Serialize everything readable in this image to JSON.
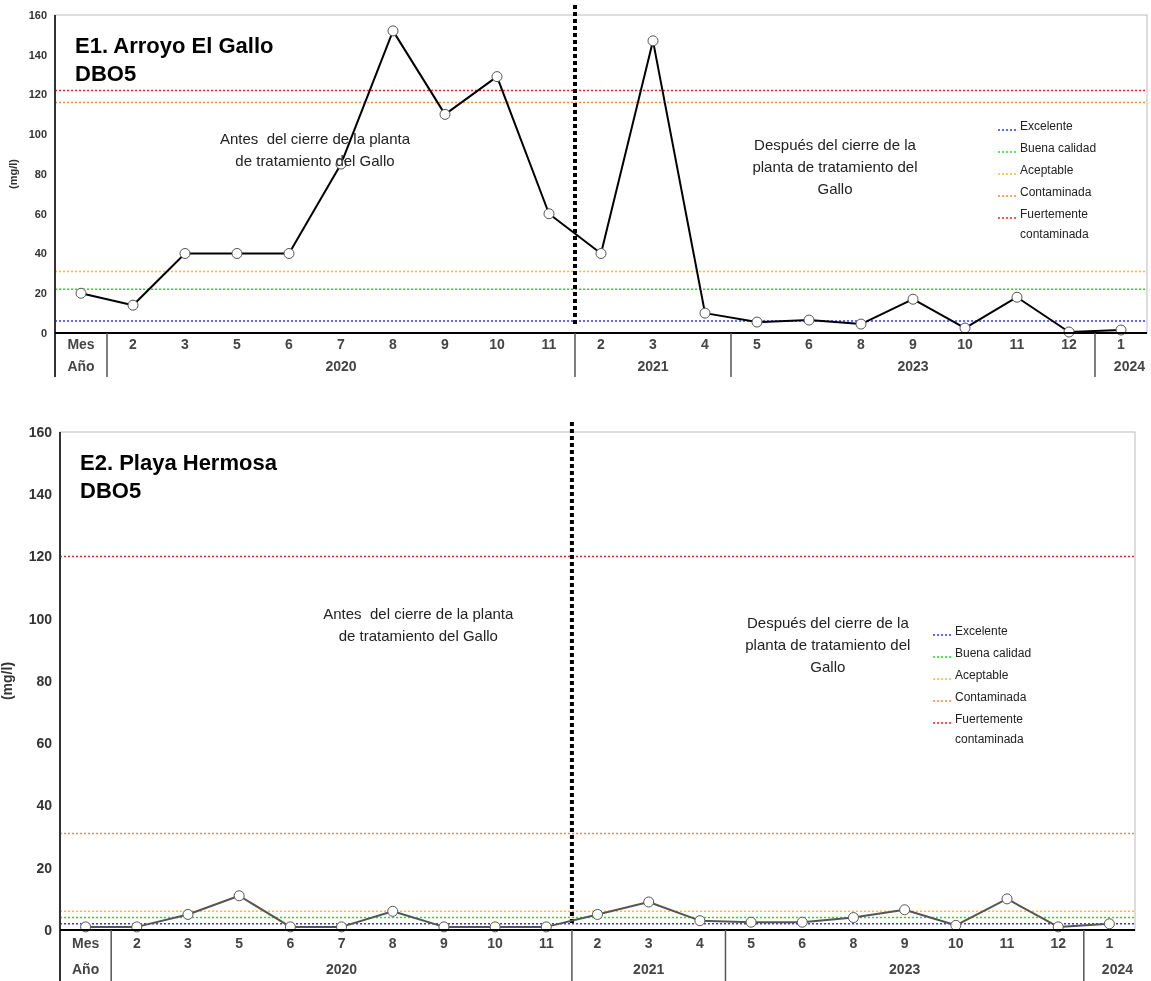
{
  "chart_data": [
    {
      "type": "line",
      "title": "E1. Arroyo El Gallo",
      "subtitle": "DBO5",
      "ylabel": "(mg/l)",
      "categories": [
        "Mes",
        "2",
        "3",
        "5",
        "6",
        "7",
        "8",
        "9",
        "10",
        "11",
        "2",
        "3",
        "4",
        "5",
        "6",
        "8",
        "9",
        "10",
        "11",
        "12",
        "1"
      ],
      "series": [
        {
          "color": "#000000",
          "values": [
            20,
            14,
            40,
            40,
            40,
            85,
            152,
            110,
            129,
            60,
            40,
            147,
            10,
            5.5,
            6.5,
            4.5,
            17,
            2.5,
            18,
            0.5,
            1.5
          ]
        }
      ],
      "ylim": [
        0,
        160
      ],
      "yticks": [
        0,
        20,
        40,
        60,
        80,
        100,
        120,
        140,
        160
      ],
      "marker": "circle",
      "line_style": "solid",
      "legend": "right",
      "grid": false,
      "ref_lines": [
        {
          "axis": "y",
          "value": 6,
          "label": "Excelente",
          "color": "#3333ff",
          "line_style": "dotted"
        },
        {
          "axis": "y",
          "value": 22,
          "label": "Buena calidad",
          "color": "#22dd22",
          "line_style": "dotted"
        },
        {
          "axis": "y",
          "value": 31,
          "label": "Aceptable",
          "color": "#ffbb22",
          "line_style": "dotted"
        },
        {
          "axis": "y",
          "value": 116,
          "label": "Contaminada",
          "color": "#ff8833",
          "line_style": "dotted"
        },
        {
          "axis": "y",
          "value": 122,
          "label": "Fuertemente contaminada",
          "color": "#ee2222",
          "line_style": "dotted"
        }
      ],
      "annotations": [
        "Antes  del cierre de la planta de tratamiento del Gallo",
        "Después del cierre de la planta de tratamiento del Gallo",
        "Año",
        "2020",
        "2021",
        "2023",
        "2024"
      ]
    },
    {
      "type": "line",
      "title": "E2. Playa Hermosa",
      "subtitle": "DBO5",
      "ylabel": "(mg/l)",
      "categories": [
        "Mes",
        "2",
        "3",
        "5",
        "6",
        "7",
        "8",
        "9",
        "10",
        "11",
        "2",
        "3",
        "4",
        "5",
        "6",
        "8",
        "9",
        "10",
        "11",
        "12",
        "1"
      ],
      "series": [
        {
          "color": "#555555",
          "values": [
            1,
            1,
            5,
            11,
            1,
            1,
            6,
            1,
            1,
            1,
            5,
            9,
            3,
            2.5,
            2.5,
            4,
            6.5,
            1.5,
            10,
            1,
            2
          ]
        }
      ],
      "ylim": [
        0,
        160
      ],
      "yticks": [
        0,
        20,
        40,
        60,
        80,
        100,
        120,
        140,
        160
      ],
      "marker": "circle",
      "line_style": "solid",
      "legend": "right",
      "grid": false,
      "ref_lines": [
        {
          "axis": "y",
          "value": 2,
          "label": "Excelente",
          "color": "#3333ff",
          "line_style": "dotted"
        },
        {
          "axis": "y",
          "value": 4,
          "label": "Buena calidad",
          "color": "#22dd22",
          "line_style": "dotted"
        },
        {
          "axis": "y",
          "value": 6,
          "label": "Aceptable",
          "color": "#ffbb22",
          "line_style": "dotted"
        },
        {
          "axis": "y",
          "value": 31,
          "label": "Contaminada",
          "color": "#ff8833",
          "line_style": "dotted"
        },
        {
          "axis": "y",
          "value": 120,
          "label": "Fuertemente contaminada",
          "color": "#ee2222",
          "line_style": "dotted"
        }
      ],
      "annotations": [
        "Antes  del cierre de la planta de tratamiento del Gallo",
        "Después del cierre de la planta de tratamiento del Gallo",
        "Año",
        "2020",
        "2021",
        "2023",
        "2024"
      ]
    }
  ]
}
